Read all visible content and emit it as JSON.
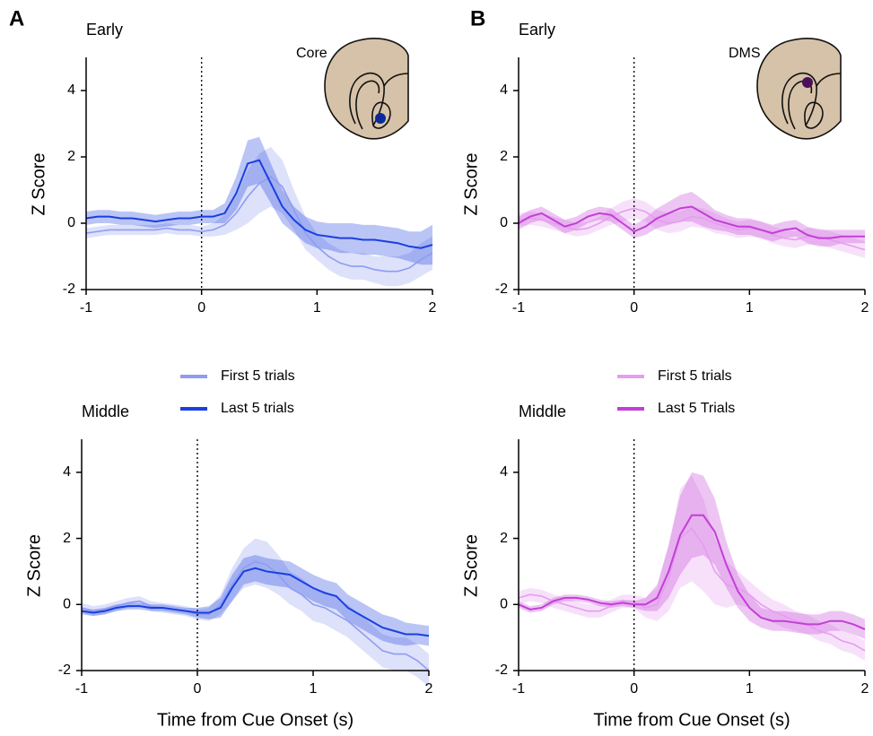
{
  "chart_data": [
    {
      "type": "line",
      "panel_label": "A",
      "title": "Early",
      "inset_label": "Core",
      "inset_color": "#0a2a9a",
      "ylabel": "Z Score",
      "x": [
        -1,
        -0.9,
        -0.8,
        -0.7,
        -0.6,
        -0.5,
        -0.4,
        -0.3,
        -0.2,
        -0.1,
        0,
        0.1,
        0.2,
        0.3,
        0.4,
        0.5,
        0.6,
        0.7,
        0.8,
        0.9,
        1,
        1.1,
        1.2,
        1.3,
        1.4,
        1.5,
        1.6,
        1.7,
        1.8,
        1.9,
        2
      ],
      "xlim": [
        -1,
        2
      ],
      "xticks": [
        -1,
        0,
        1,
        2
      ],
      "ylim": [
        -2,
        5
      ],
      "yticks": [
        -2,
        0,
        2,
        4
      ],
      "vline": 0,
      "series": [
        {
          "color": "#8f9cf0",
          "values": [
            -0.3,
            -0.25,
            -0.2,
            -0.2,
            -0.2,
            -0.2,
            -0.2,
            -0.15,
            -0.2,
            -0.2,
            -0.25,
            -0.2,
            -0.05,
            0.3,
            0.8,
            1.2,
            1.4,
            1.1,
            0.4,
            -0.3,
            -0.7,
            -1.0,
            -1.2,
            -1.3,
            -1.3,
            -1.4,
            -1.45,
            -1.45,
            -1.35,
            -1.1,
            -0.9
          ],
          "errors": [
            0.15,
            0.15,
            0.15,
            0.15,
            0.15,
            0.15,
            0.15,
            0.15,
            0.15,
            0.15,
            0.15,
            0.2,
            0.3,
            0.5,
            0.8,
            0.9,
            0.9,
            0.8,
            0.6,
            0.5,
            0.4,
            0.4,
            0.4,
            0.4,
            0.4,
            0.4,
            0.45,
            0.45,
            0.45,
            0.5,
            0.5
          ]
        },
        {
          "color": "#1a3fe0",
          "values": [
            0.15,
            0.2,
            0.2,
            0.15,
            0.15,
            0.1,
            0.05,
            0.1,
            0.15,
            0.15,
            0.2,
            0.2,
            0.3,
            0.9,
            1.8,
            1.9,
            1.2,
            0.5,
            0.1,
            -0.2,
            -0.35,
            -0.4,
            -0.45,
            -0.45,
            -0.5,
            -0.5,
            -0.55,
            -0.6,
            -0.7,
            -0.75,
            -0.65
          ],
          "errors": [
            0.2,
            0.2,
            0.2,
            0.2,
            0.2,
            0.2,
            0.2,
            0.2,
            0.2,
            0.2,
            0.2,
            0.2,
            0.3,
            0.5,
            0.7,
            0.7,
            0.6,
            0.5,
            0.4,
            0.4,
            0.4,
            0.4,
            0.45,
            0.45,
            0.45,
            0.45,
            0.45,
            0.45,
            0.45,
            0.5,
            0.6
          ]
        }
      ]
    },
    {
      "type": "line",
      "panel_label": "B",
      "title": "Early",
      "inset_label": "DMS",
      "inset_color": "#4a1058",
      "ylabel": "Z Score",
      "x": [
        -1,
        -0.9,
        -0.8,
        -0.7,
        -0.6,
        -0.5,
        -0.4,
        -0.3,
        -0.2,
        -0.1,
        0,
        0.1,
        0.2,
        0.3,
        0.4,
        0.5,
        0.6,
        0.7,
        0.8,
        0.9,
        1,
        1.1,
        1.2,
        1.3,
        1.4,
        1.5,
        1.6,
        1.7,
        1.8,
        1.9,
        2
      ],
      "xlim": [
        -1,
        2
      ],
      "xticks": [
        -1,
        0,
        1,
        2
      ],
      "ylim": [
        -2,
        5
      ],
      "yticks": [
        -2,
        0,
        2,
        4
      ],
      "vline": 0,
      "series": [
        {
          "color": "#e59df0",
          "values": [
            0.1,
            0.15,
            0.1,
            0.0,
            -0.1,
            -0.2,
            -0.15,
            0.0,
            0.2,
            0.35,
            0.45,
            0.35,
            0.1,
            0.0,
            0.05,
            0.2,
            0.15,
            0.0,
            -0.1,
            -0.2,
            -0.15,
            -0.2,
            -0.35,
            -0.45,
            -0.5,
            -0.4,
            -0.4,
            -0.5,
            -0.6,
            -0.7,
            -0.8
          ],
          "errors": [
            0.2,
            0.2,
            0.2,
            0.2,
            0.2,
            0.2,
            0.2,
            0.2,
            0.25,
            0.3,
            0.3,
            0.3,
            0.3,
            0.3,
            0.3,
            0.3,
            0.3,
            0.3,
            0.25,
            0.25,
            0.25,
            0.25,
            0.25,
            0.25,
            0.25,
            0.25,
            0.25,
            0.25,
            0.25,
            0.25,
            0.25
          ]
        },
        {
          "color": "#c23fd6",
          "values": [
            0.0,
            0.2,
            0.3,
            0.1,
            -0.1,
            0.0,
            0.2,
            0.3,
            0.25,
            0.0,
            -0.25,
            -0.1,
            0.15,
            0.3,
            0.45,
            0.5,
            0.3,
            0.1,
            0.0,
            -0.1,
            -0.1,
            -0.2,
            -0.3,
            -0.2,
            -0.15,
            -0.35,
            -0.45,
            -0.45,
            -0.4,
            -0.4,
            -0.4
          ],
          "errors": [
            0.2,
            0.2,
            0.2,
            0.2,
            0.2,
            0.2,
            0.2,
            0.2,
            0.2,
            0.2,
            0.2,
            0.25,
            0.3,
            0.35,
            0.4,
            0.45,
            0.4,
            0.3,
            0.25,
            0.25,
            0.25,
            0.25,
            0.25,
            0.25,
            0.25,
            0.25,
            0.25,
            0.25,
            0.2,
            0.2,
            0.2
          ]
        }
      ]
    },
    {
      "type": "line",
      "title": "Middle",
      "ylabel": "Z Score",
      "xlabel": "Time from Cue Onset (s)",
      "x": [
        -1,
        -0.9,
        -0.8,
        -0.7,
        -0.6,
        -0.5,
        -0.4,
        -0.3,
        -0.2,
        -0.1,
        0,
        0.1,
        0.2,
        0.3,
        0.4,
        0.5,
        0.6,
        0.7,
        0.8,
        0.9,
        1,
        1.1,
        1.2,
        1.3,
        1.4,
        1.5,
        1.6,
        1.7,
        1.8,
        1.9,
        2
      ],
      "xlim": [
        -1,
        2
      ],
      "xticks": [
        -1,
        0,
        1,
        2
      ],
      "ylim": [
        -2,
        5
      ],
      "yticks": [
        -2,
        0,
        2,
        4
      ],
      "vline": 0,
      "series": [
        {
          "name": "First 5 trials",
          "color": "#8f9cf0",
          "values": [
            -0.1,
            -0.2,
            -0.15,
            -0.05,
            0.05,
            0.1,
            -0.05,
            -0.1,
            -0.15,
            -0.2,
            -0.3,
            -0.3,
            0.0,
            0.6,
            1.1,
            1.3,
            1.2,
            0.9,
            0.5,
            0.3,
            0.0,
            -0.1,
            -0.3,
            -0.5,
            -0.8,
            -1.1,
            -1.4,
            -1.5,
            -1.5,
            -1.7,
            -2.0
          ],
          "errors": [
            0.15,
            0.15,
            0.15,
            0.15,
            0.15,
            0.15,
            0.15,
            0.15,
            0.15,
            0.15,
            0.15,
            0.2,
            0.3,
            0.5,
            0.6,
            0.7,
            0.7,
            0.6,
            0.5,
            0.5,
            0.5,
            0.5,
            0.5,
            0.5,
            0.5,
            0.5,
            0.5,
            0.5,
            0.5,
            0.5,
            0.5
          ]
        },
        {
          "name": "Last 5 trials",
          "color": "#1a3fe0",
          "values": [
            -0.2,
            -0.25,
            -0.2,
            -0.1,
            -0.05,
            -0.05,
            -0.1,
            -0.1,
            -0.15,
            -0.2,
            -0.25,
            -0.25,
            -0.1,
            0.5,
            1.0,
            1.1,
            1.0,
            0.95,
            0.9,
            0.7,
            0.5,
            0.35,
            0.25,
            -0.1,
            -0.3,
            -0.5,
            -0.7,
            -0.8,
            -0.9,
            -0.9,
            -0.95
          ],
          "errors": [
            0.1,
            0.1,
            0.1,
            0.1,
            0.1,
            0.1,
            0.1,
            0.1,
            0.1,
            0.1,
            0.15,
            0.2,
            0.3,
            0.4,
            0.4,
            0.4,
            0.4,
            0.4,
            0.4,
            0.4,
            0.4,
            0.4,
            0.4,
            0.4,
            0.4,
            0.4,
            0.4,
            0.4,
            0.35,
            0.3,
            0.3
          ]
        }
      ]
    },
    {
      "type": "line",
      "title": "Middle",
      "ylabel": "Z Score",
      "xlabel": "Time from Cue Onset (s)",
      "x": [
        -1,
        -0.9,
        -0.8,
        -0.7,
        -0.6,
        -0.5,
        -0.4,
        -0.3,
        -0.2,
        -0.1,
        0,
        0.1,
        0.2,
        0.3,
        0.4,
        0.5,
        0.6,
        0.7,
        0.8,
        0.9,
        1,
        1.1,
        1.2,
        1.3,
        1.4,
        1.5,
        1.6,
        1.7,
        1.8,
        1.9,
        2
      ],
      "xlim": [
        -1,
        2
      ],
      "xticks": [
        -1,
        0,
        1,
        2
      ],
      "ylim": [
        -2,
        5
      ],
      "yticks": [
        -2,
        0,
        2,
        4
      ],
      "vline": 0,
      "series": [
        {
          "name": "First 5 trials",
          "color": "#e59df0",
          "values": [
            0.2,
            0.3,
            0.25,
            0.1,
            0.0,
            -0.1,
            -0.2,
            -0.2,
            -0.05,
            0.1,
            0.1,
            -0.1,
            0.0,
            0.8,
            2.0,
            2.3,
            1.8,
            1.0,
            0.6,
            0.5,
            0.3,
            0.0,
            -0.2,
            -0.35,
            -0.5,
            -0.6,
            -0.8,
            -0.9,
            -1.1,
            -1.2,
            -1.4
          ],
          "errors": [
            0.2,
            0.2,
            0.2,
            0.2,
            0.2,
            0.2,
            0.2,
            0.2,
            0.2,
            0.2,
            0.2,
            0.3,
            0.5,
            1.0,
            1.5,
            1.6,
            1.4,
            1.0,
            0.7,
            0.5,
            0.4,
            0.4,
            0.35,
            0.35,
            0.3,
            0.3,
            0.3,
            0.3,
            0.3,
            0.3,
            0.3
          ]
        },
        {
          "name": "Last 5 Trials",
          "color": "#c23fd6",
          "values": [
            0.0,
            -0.15,
            -0.1,
            0.1,
            0.2,
            0.2,
            0.15,
            0.05,
            0.0,
            0.05,
            0.0,
            0.0,
            0.2,
            1.0,
            2.1,
            2.7,
            2.7,
            2.2,
            1.2,
            0.4,
            -0.1,
            -0.4,
            -0.5,
            -0.5,
            -0.55,
            -0.6,
            -0.6,
            -0.5,
            -0.5,
            -0.6,
            -0.75
          ],
          "errors": [
            0.1,
            0.1,
            0.1,
            0.1,
            0.1,
            0.1,
            0.1,
            0.1,
            0.1,
            0.1,
            0.1,
            0.2,
            0.4,
            0.8,
            1.2,
            1.3,
            1.2,
            1.0,
            0.7,
            0.5,
            0.4,
            0.3,
            0.3,
            0.3,
            0.3,
            0.3,
            0.3,
            0.3,
            0.3,
            0.3,
            0.3
          ]
        }
      ]
    }
  ]
}
